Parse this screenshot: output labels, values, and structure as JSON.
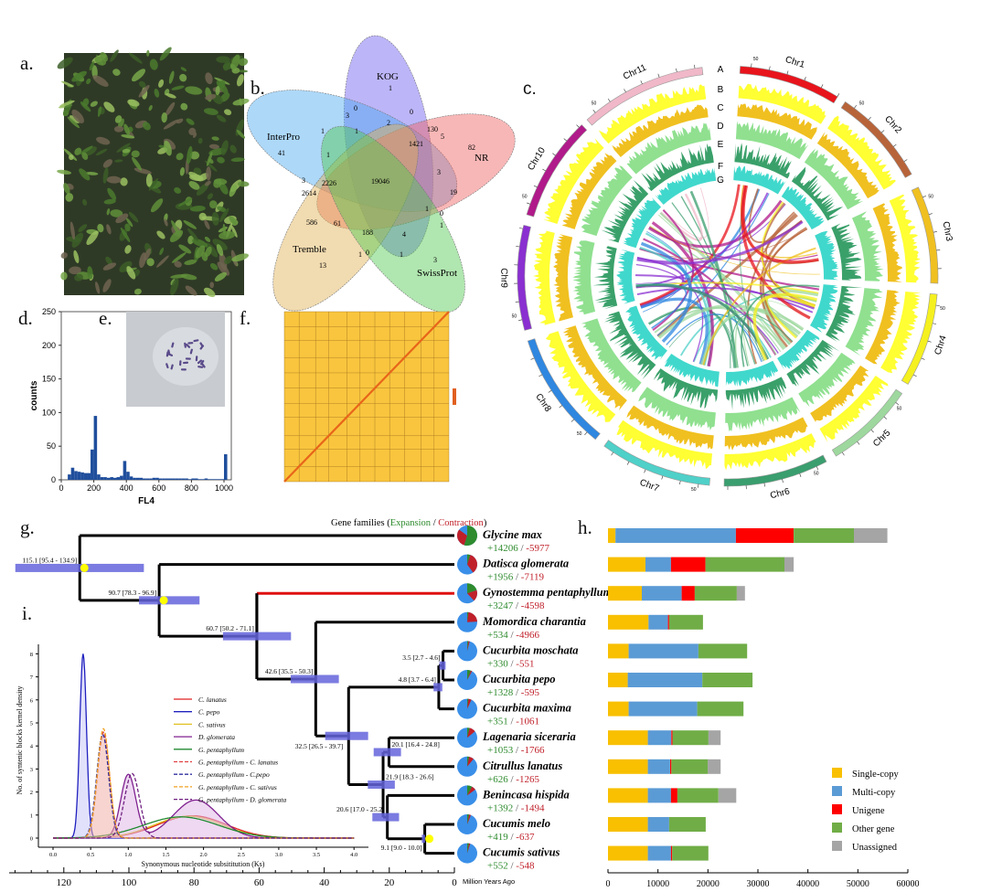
{
  "panel_letters": {
    "a": "a.",
    "b": "b.",
    "c": "c.",
    "d": "d.",
    "e": "e.",
    "f": "f.",
    "g": "g.",
    "h": "h.",
    "i": "i."
  },
  "colors": {
    "expansion": "#2e8b2e",
    "contraction": "#c0202a",
    "ci_bar": "#6464dc",
    "calibration": "#ffff00",
    "highlight_branch": "#e01010"
  },
  "chart_data": [
    {
      "panel": "b",
      "type": "venn",
      "sets": [
        {
          "name": "KOG",
          "color": "#6a5cf0"
        },
        {
          "name": "InterPro",
          "color": "#4aa8f0"
        },
        {
          "name": "NR",
          "color": "#f06060"
        },
        {
          "name": "Tremble",
          "color": "#e0b050"
        },
        {
          "name": "SwissProt",
          "color": "#50c850"
        }
      ],
      "region_values": [
        "1",
        "0",
        "3",
        "0",
        "2",
        "1",
        "1",
        "130",
        "5",
        "41",
        "1421",
        "82",
        "1",
        "3",
        "3",
        "2226",
        "19046",
        "2614",
        "19",
        "1",
        "0",
        "586",
        "61",
        "1",
        "188",
        "4",
        "1",
        "0",
        "1",
        "3",
        "13"
      ]
    },
    {
      "panel": "c",
      "type": "circos",
      "chromosomes": [
        {
          "name": "Chr1",
          "color": "#e8141c"
        },
        {
          "name": "Chr2",
          "color": "#b8643a"
        },
        {
          "name": "Chr3",
          "color": "#f0c020"
        },
        {
          "name": "Chr4",
          "color": "#f5f020"
        },
        {
          "name": "Chr5",
          "color": "#9ed89e"
        },
        {
          "name": "Chr6",
          "color": "#3a9e6e"
        },
        {
          "name": "Chr7",
          "color": "#4fd0c8"
        },
        {
          "name": "Chr8",
          "color": "#2f87e0"
        },
        {
          "name": "Chr9",
          "color": "#8a2fd0"
        },
        {
          "name": "Chr10",
          "color": "#b01a8a"
        },
        {
          "name": "Chr11",
          "color": "#f0b8c8"
        }
      ],
      "tick_label": "50",
      "tracks": [
        {
          "label": "A"
        },
        {
          "label": "B",
          "color": "#ffff33"
        },
        {
          "label": "C",
          "color": "#f0c020"
        },
        {
          "label": "D",
          "color": "#90e090"
        },
        {
          "label": "E",
          "color": "#3aa06a"
        },
        {
          "label": "F",
          "color": "#40d8cc"
        },
        {
          "label": "G"
        }
      ]
    },
    {
      "panel": "d",
      "type": "bar",
      "subtype": "histogram",
      "xlabel": "FL4",
      "ylabel": "counts",
      "xlim": [
        0,
        1020
      ],
      "ylim": [
        0,
        250
      ],
      "xticks": [
        "0",
        "200",
        "400",
        "600",
        "800",
        "1000"
      ],
      "yticks": [
        "0",
        "50",
        "100",
        "150",
        "200",
        "250"
      ],
      "bin_width": 20,
      "bin_starts_from": 0,
      "values": [
        0,
        0,
        8,
        18,
        13,
        12,
        11,
        10,
        10,
        45,
        95,
        8,
        4,
        4,
        3,
        4,
        3,
        4,
        6,
        28,
        12,
        5,
        3,
        3,
        3,
        2,
        2,
        2,
        3,
        3,
        2,
        2,
        2,
        2,
        2,
        2,
        2,
        2,
        2,
        1,
        2,
        2,
        1,
        1,
        2,
        1,
        1,
        1,
        1,
        1,
        38
      ],
      "color": "#1f4e9c"
    },
    {
      "panel": "h",
      "type": "bar",
      "orientation": "horizontal",
      "stacked": true,
      "xlim": [
        0,
        60000
      ],
      "xticks": [
        "0",
        "10000",
        "20000",
        "30000",
        "40000",
        "50000",
        "60000"
      ],
      "legend_position": "bottom-right",
      "categories": [
        "Glycine max",
        "Datisca glomerata",
        "Gynostemma pentaphyllum",
        "Momordica charantia",
        "Cucurbita moschata",
        "Cucurbita pepo",
        "Cucurbita maxima",
        "Lagenaria siceraria",
        "Citrullus lanatus",
        "Benincasa hispida",
        "Cucumis melo",
        "Cucumis sativus"
      ],
      "series": [
        {
          "name": "Single-copy",
          "color": "#f8c000",
          "values": [
            1500,
            7500,
            6760,
            8100,
            4140,
            3960,
            4140,
            7980,
            7980,
            7980,
            7980,
            7980
          ]
        },
        {
          "name": "Multi-copy",
          "color": "#5b9bd5",
          "values": [
            24100,
            5100,
            7980,
            3900,
            13950,
            14920,
            13710,
            4690,
            4450,
            4630,
            4260,
            4630
          ]
        },
        {
          "name": "Unigene",
          "color": "#ff0000",
          "values": [
            11550,
            6900,
            2620,
            240,
            0,
            0,
            0,
            240,
            240,
            1280,
            0,
            240
          ]
        },
        {
          "name": "Other gene",
          "color": "#70ad47",
          "values": [
            12050,
            15800,
            8410,
            6760,
            9750,
            10050,
            9260,
            7190,
            7310,
            8220,
            7310,
            7250
          ]
        },
        {
          "name": "Unassigned",
          "color": "#a5a5a5",
          "values": [
            6700,
            1850,
            1630,
            0,
            0,
            0,
            0,
            2440,
            2560,
            3540,
            0,
            0
          ]
        }
      ]
    },
    {
      "panel": "i",
      "type": "line",
      "subtype": "kernel-density",
      "xlabel": "Synonymous nucleotide subsititution (Ks)",
      "ylabel": "No. of syntenic blocks kernel density",
      "xlim": [
        0,
        4
      ],
      "ylim": [
        0,
        8
      ],
      "xticks": [
        "0.0",
        "0.5",
        "1.0",
        "1.5",
        "2.0",
        "2.5",
        "3.0",
        "3.5",
        "4.0"
      ],
      "yticks": [
        "0",
        "1",
        "2",
        "3",
        "4",
        "5",
        "6",
        "7",
        "8"
      ],
      "legend_position": "center",
      "series": [
        {
          "name": "C. lanatus",
          "color": "#e02020",
          "dash": false,
          "peaks": [
            {
              "ks": 1.85,
              "density": 0.97,
              "sd": 0.45
            }
          ]
        },
        {
          "name": "C. pepo",
          "color": "#2020c0",
          "dash": false,
          "fill": "#c8c8f8",
          "peaks": [
            {
              "ks": 0.4,
              "density": 8.0,
              "sd": 0.045
            }
          ]
        },
        {
          "name": "C. sativus",
          "color": "#e0c020",
          "dash": false,
          "peaks": [
            {
              "ks": 1.8,
              "density": 0.95,
              "sd": 0.45
            }
          ]
        },
        {
          "name": "D. glomerata",
          "color": "#802090",
          "dash": false,
          "fill": "#e0b8e8",
          "peaks": [
            {
              "ks": 1.0,
              "density": 2.75,
              "sd": 0.1
            },
            {
              "ks": 1.9,
              "density": 1.65,
              "sd": 0.3
            }
          ]
        },
        {
          "name": "G. pentaphyllum",
          "color": "#208a30",
          "dash": false,
          "peaks": [
            {
              "ks": 1.7,
              "density": 0.92,
              "sd": 0.5
            }
          ]
        },
        {
          "name": "G. pentaphyllum - C. lanatus",
          "color": "#e04040",
          "dash": true,
          "fill": "#f0b0a8",
          "peaks": [
            {
              "ks": 0.67,
              "density": 4.6,
              "sd": 0.08
            }
          ]
        },
        {
          "name": "G. pentaphyllum - C.pepo",
          "color": "#3030a0",
          "dash": true,
          "peaks": [
            {
              "ks": 0.66,
              "density": 4.5,
              "sd": 0.08
            }
          ]
        },
        {
          "name": "G. pentaphyllum - C. sativus",
          "color": "#f0a020",
          "dash": true,
          "peaks": [
            {
              "ks": 0.67,
              "density": 4.75,
              "sd": 0.08
            }
          ]
        },
        {
          "name": "G. pentaphyllum - D. glomerata",
          "color": "#702080",
          "dash": true,
          "peaks": [
            {
              "ks": 1.05,
              "density": 2.8,
              "sd": 0.1
            }
          ]
        }
      ]
    }
  ],
  "tree": {
    "title_prefix": "Gene families (",
    "title_expansion": "Expansion",
    "title_sep": " / ",
    "title_contraction": "Contraction",
    "title_suffix": ")",
    "axis_label": "Million Years Ago",
    "axis_ticks": [
      "120",
      "100",
      "80",
      "60",
      "40",
      "20",
      "0"
    ],
    "leaves": [
      {
        "name": "Glycine max",
        "expansion": "+14206",
        "contraction": "-5977",
        "pie_expansion": 0.55,
        "pie_contraction": 0.3
      },
      {
        "name": "Datisca glomerata",
        "expansion": "+1956",
        "contraction": "-7119",
        "pie_expansion": 0.05,
        "pie_contraction": 0.35
      },
      {
        "name": "Gynostemma pentaphyllum",
        "expansion": "+3247",
        "contraction": "-4598",
        "pie_expansion": 0.2,
        "pie_contraction": 0.18,
        "highlight": true
      },
      {
        "name": "Momordica charantia",
        "expansion": "+534",
        "contraction": "-4966",
        "pie_expansion": 0.02,
        "pie_contraction": 0.22
      },
      {
        "name": "Cucurbita moschata",
        "expansion": "+330",
        "contraction": "-551",
        "pie_expansion": 0.02,
        "pie_contraction": 0.02
      },
      {
        "name": "Cucurbita pepo",
        "expansion": "+1328",
        "contraction": "-595",
        "pie_expansion": 0.06,
        "pie_contraction": 0.02
      },
      {
        "name": "Cucurbita maxima",
        "expansion": "+351",
        "contraction": "-1061",
        "pie_expansion": 0.02,
        "pie_contraction": 0.05
      },
      {
        "name": "Lagenaria siceraria",
        "expansion": "+1053",
        "contraction": "-1766",
        "pie_expansion": 0.04,
        "pie_contraction": 0.1
      },
      {
        "name": "Citrullus lanatus",
        "expansion": "+626",
        "contraction": "-1265",
        "pie_expansion": 0.03,
        "pie_contraction": 0.08
      },
      {
        "name": "Benincasa hispida",
        "expansion": "+1392",
        "contraction": "-1494",
        "pie_expansion": 0.08,
        "pie_contraction": 0.07
      },
      {
        "name": "Cucumis melo",
        "expansion": "+419",
        "contraction": "-637",
        "pie_expansion": 0.03,
        "pie_contraction": 0.03
      },
      {
        "name": "Cucumis sativus",
        "expansion": "+552",
        "contraction": "-548",
        "pie_expansion": 0.03,
        "pie_contraction": 0.02
      }
    ],
    "nodes": [
      {
        "id": "N0",
        "age": 115.1,
        "ci": [
          95.4,
          134.9
        ],
        "label": "115.1 [95.4 - 134.9]",
        "calibrated": true,
        "children": [
          "L0",
          "N1"
        ]
      },
      {
        "id": "N1",
        "age": 90.7,
        "ci": [
          78.3,
          96.9
        ],
        "label": "90.7 [78.3 - 96.9]",
        "calibrated": true,
        "children": [
          "L1",
          "N2"
        ]
      },
      {
        "id": "N2",
        "age": 60.7,
        "ci": [
          50.2,
          71.1
        ],
        "label": "60.7 [50.2 - 71.1]",
        "children": [
          "L2",
          "N3"
        ]
      },
      {
        "id": "N3",
        "age": 42.6,
        "ci": [
          35.5,
          50.3
        ],
        "label": "42.6 [35.5 - 50.3]",
        "children": [
          "L3",
          "N4"
        ]
      },
      {
        "id": "N4",
        "age": 32.5,
        "ci": [
          26.5,
          39.7
        ],
        "label": "32.5 [26.5 - 39.7]",
        "children": [
          "N5",
          "N7"
        ]
      },
      {
        "id": "N5",
        "age": 4.8,
        "ci": [
          3.7,
          6.4
        ],
        "label": "4.8 [3.7 - 6.4]",
        "children": [
          "N6",
          "L6"
        ]
      },
      {
        "id": "N6",
        "age": 3.5,
        "ci": [
          2.7,
          4.6
        ],
        "label": "3.5 [2.7 - 4.6]",
        "children": [
          "L4",
          "L5"
        ]
      },
      {
        "id": "N7",
        "age": 21.9,
        "ci": [
          18.3,
          26.6
        ],
        "label": "21.9 [18.3 - 26.6]",
        "children": [
          "N8",
          "N9"
        ]
      },
      {
        "id": "N8",
        "age": 20.1,
        "ci": [
          16.4,
          24.8
        ],
        "label": "20.1 [16.4 - 24.8]",
        "children": [
          "L7",
          "L8"
        ]
      },
      {
        "id": "N9",
        "age": 20.6,
        "ci": [
          17.0,
          25.2
        ],
        "label": "20.6 [17.0 - 25.2]",
        "children": [
          "L9",
          "N10"
        ]
      },
      {
        "id": "N10",
        "age": 9.1,
        "ci": [
          9.0,
          10.0
        ],
        "label": "9.1 [9.0 - 10.0]",
        "calibrated": true,
        "children": [
          "L10",
          "L11"
        ]
      }
    ]
  }
}
